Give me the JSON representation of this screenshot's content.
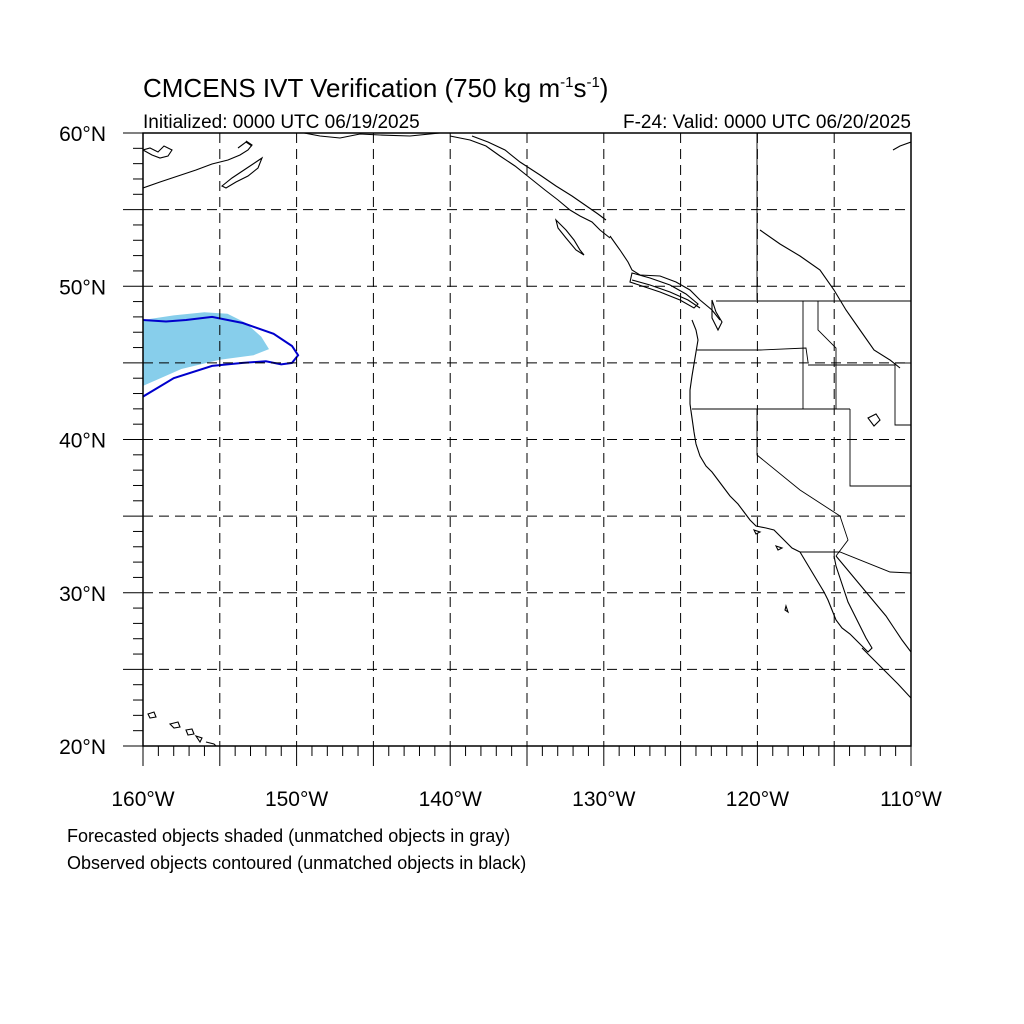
{
  "title_main": "CMCENS IVT Verification (750 kg m",
  "title_exp1": "-1",
  "title_mid": "s",
  "title_exp2": "-1",
  "title_end": ")",
  "initialized": "Initialized: 0000 UTC 06/19/2025",
  "valid": "F-24: Valid: 0000 UTC 06/20/2025",
  "footnote_forecast": "Forecasted objects shaded (unmatched objects in gray)",
  "footnote_observed": "Observed objects contoured (unmatched objects in black)",
  "map": {
    "lon_range": [
      -160,
      -110
    ],
    "lat_range": [
      20,
      60
    ],
    "lon_labels": [
      {
        "lon": -160,
        "text": "160°W"
      },
      {
        "lon": -150,
        "text": "150°W"
      },
      {
        "lon": -140,
        "text": "140°W"
      },
      {
        "lon": -130,
        "text": "130°W"
      },
      {
        "lon": -120,
        "text": "120°W"
      },
      {
        "lon": -110,
        "text": "110°W"
      }
    ],
    "lat_labels": [
      {
        "lat": 60,
        "text": "60°N"
      },
      {
        "lat": 50,
        "text": "50°N"
      },
      {
        "lat": 40,
        "text": "40°N"
      },
      {
        "lat": 30,
        "text": "30°N"
      },
      {
        "lat": 20,
        "text": "20°N"
      }
    ],
    "grid_spacing_deg": 5,
    "colors": {
      "forecast_fill": "#87CEEB",
      "observed_contour": "#0000CC",
      "coast": "#000000",
      "grid": "#000000"
    },
    "forecast_object": [
      [
        -160,
        47.8
      ],
      [
        -158,
        48.1
      ],
      [
        -156,
        48.3
      ],
      [
        -154.5,
        48.2
      ],
      [
        -153.3,
        47.6
      ],
      [
        -152.3,
        46.7
      ],
      [
        -151.8,
        45.9
      ],
      [
        -152.8,
        45.5
      ],
      [
        -155,
        45.2
      ],
      [
        -157.5,
        44.6
      ],
      [
        -160,
        43.5
      ]
    ],
    "observed_object": [
      [
        -160,
        47.8
      ],
      [
        -158.5,
        47.7
      ],
      [
        -157.2,
        47.8
      ],
      [
        -155.5,
        48.0
      ],
      [
        -153.5,
        47.6
      ],
      [
        -151.5,
        46.9
      ],
      [
        -150.3,
        46.1
      ],
      [
        -149.9,
        45.5
      ],
      [
        -150.3,
        45.0
      ],
      [
        -151,
        44.9
      ],
      [
        -152,
        45.1
      ],
      [
        -153.5,
        45.0
      ],
      [
        -155.5,
        44.8
      ],
      [
        -158,
        44.0
      ],
      [
        -160,
        42.8
      ]
    ]
  }
}
